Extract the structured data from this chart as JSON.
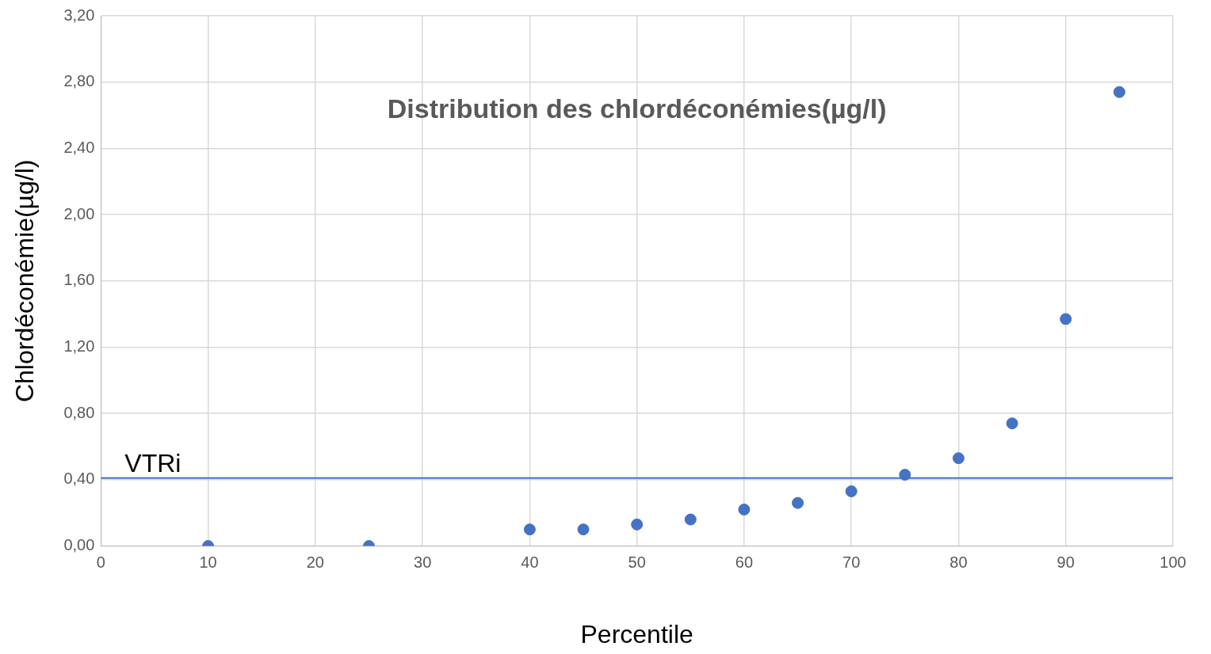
{
  "chart_data": {
    "type": "scatter",
    "title": "Distribution des chlordéconémies(µg/l)",
    "xlabel": "Percentile",
    "ylabel": "Chlordéconémie(µg/l)",
    "x": [
      10,
      25,
      40,
      45,
      50,
      55,
      60,
      65,
      70,
      75,
      80,
      85,
      90,
      95
    ],
    "series": [
      {
        "color": "#4472c4",
        "values": [
          0,
          0,
          0.1,
          0.1,
          0.13,
          0.16,
          0.22,
          0.26,
          0.33,
          0.43,
          0.53,
          0.74,
          1.37,
          2.74
        ]
      }
    ],
    "xlim": [
      0,
      100
    ],
    "xticks": [
      0,
      10,
      20,
      30,
      40,
      50,
      60,
      70,
      80,
      90,
      100
    ],
    "ylim": [
      0,
      3.2
    ],
    "yticks": [
      {
        "value": 0,
        "label": "0,00"
      },
      {
        "value": 0.4,
        "label": "0,40"
      },
      {
        "value": 0.8,
        "label": "0,80"
      },
      {
        "value": 1.2,
        "label": "1,20"
      },
      {
        "value": 1.6,
        "label": "1,60"
      },
      {
        "value": 2.0,
        "label": "2,00"
      },
      {
        "value": 2.4,
        "label": "2,40"
      },
      {
        "value": 2.8,
        "label": "2,80"
      },
      {
        "value": 3.2,
        "label": "3,20"
      }
    ],
    "ref_lines": [
      {
        "axis": "y",
        "value": 0.41,
        "label": "VTRi",
        "color": "#4472c4"
      }
    ],
    "grid": true,
    "legend": false,
    "marker": "circle"
  }
}
